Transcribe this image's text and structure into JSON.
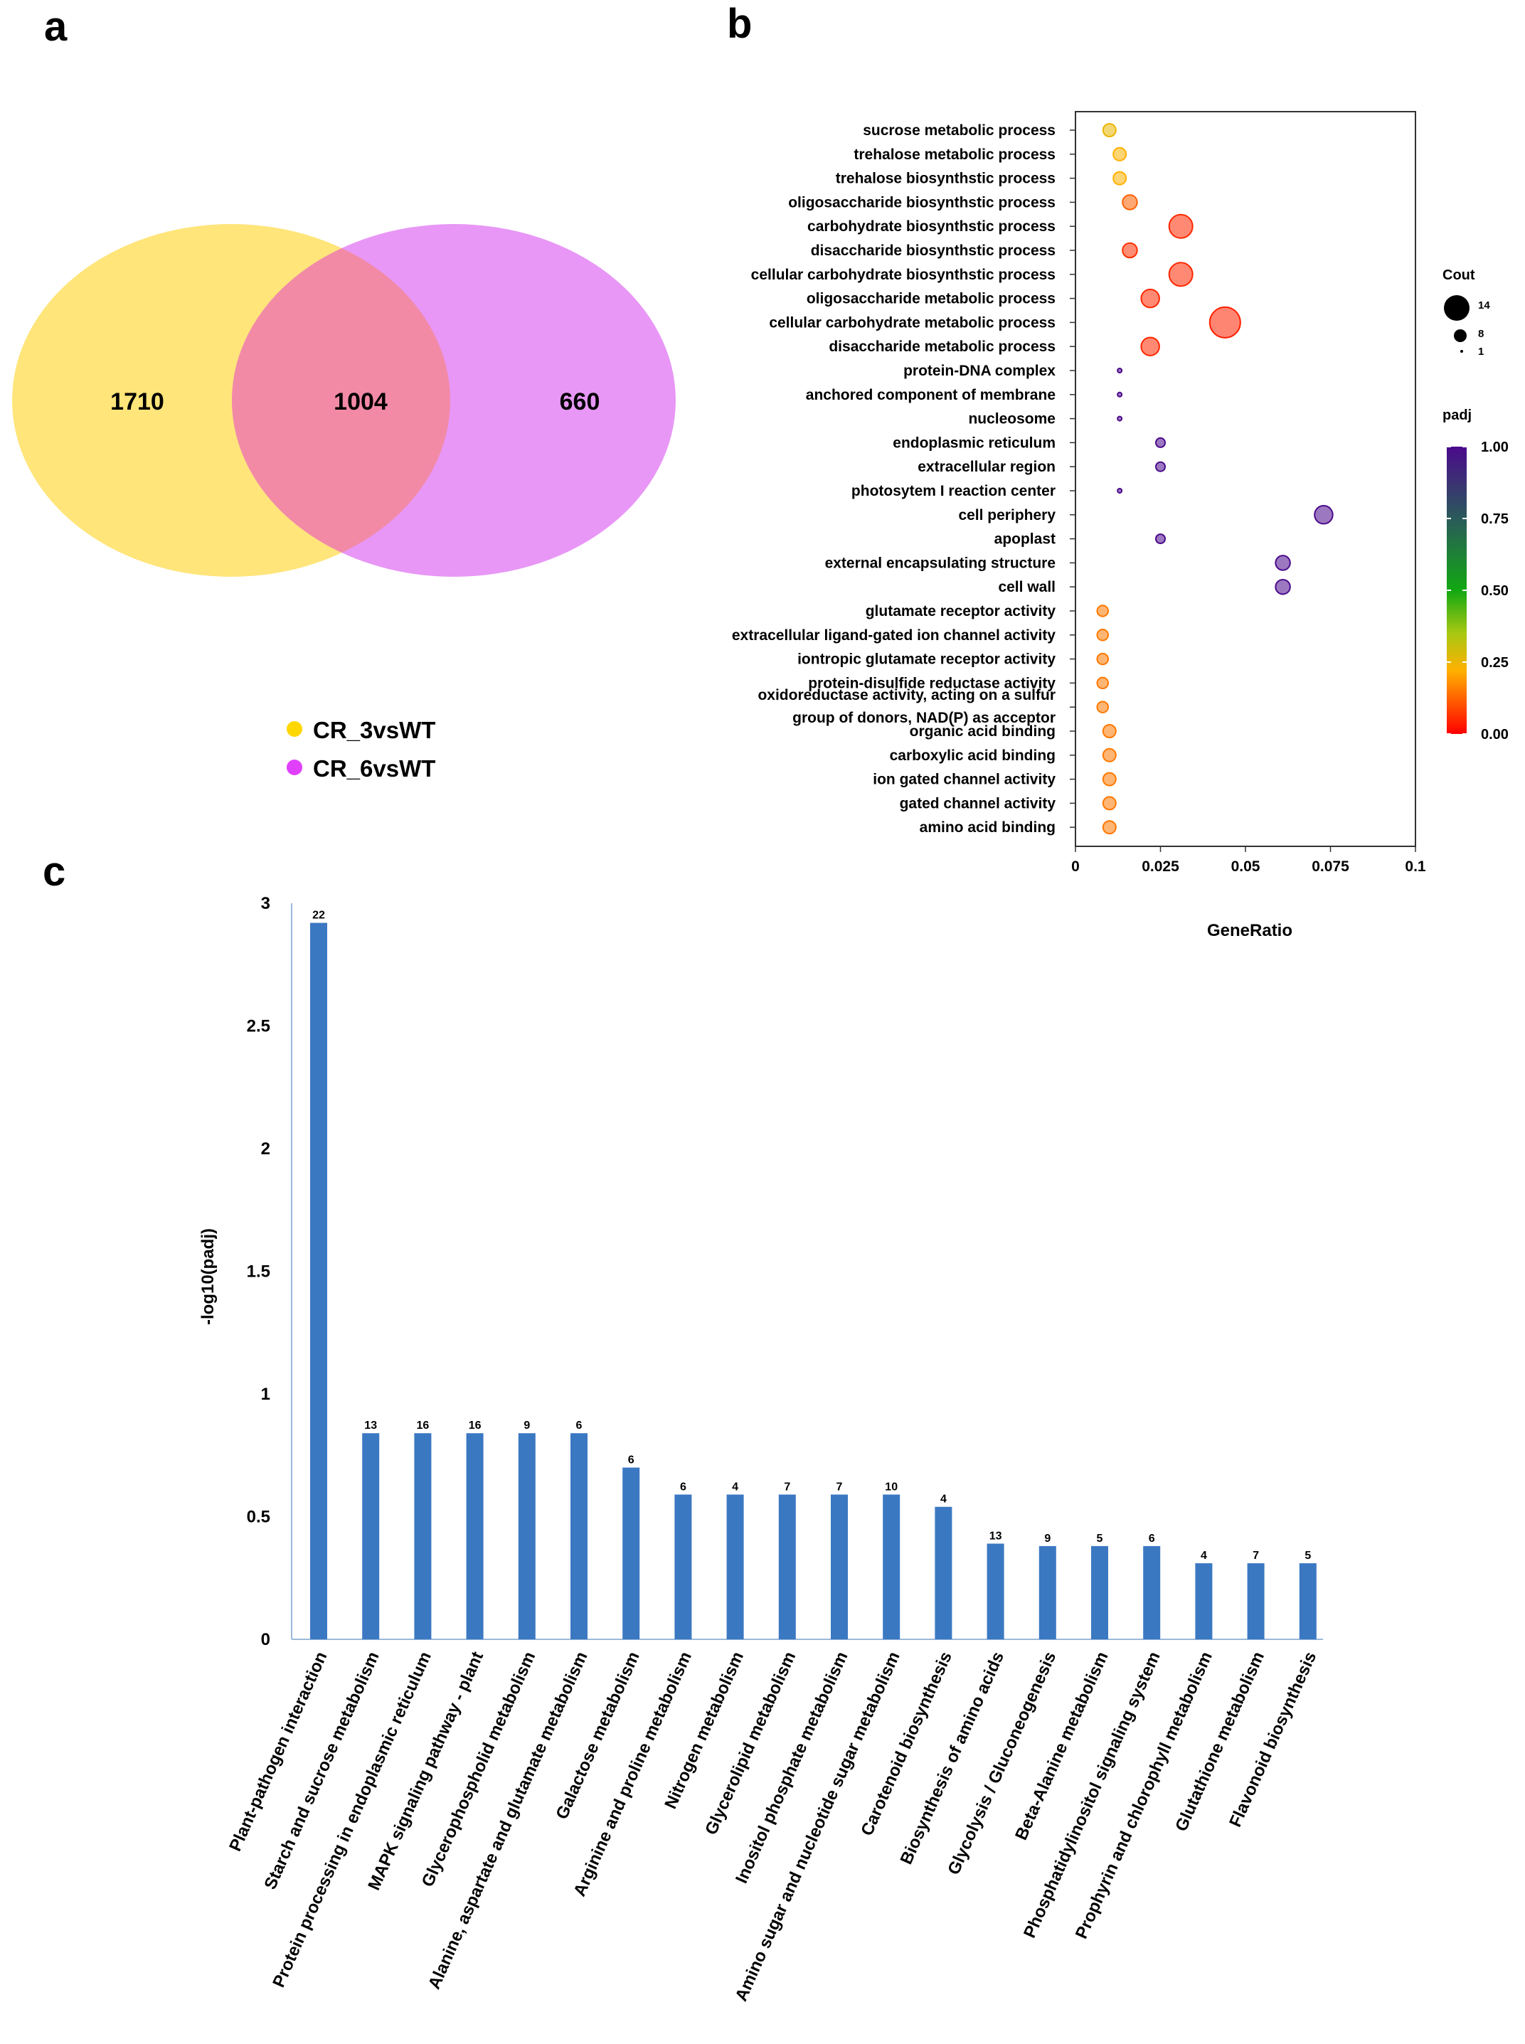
{
  "panels": {
    "a": "a",
    "b": "b",
    "c": "c"
  },
  "venn": {
    "left_only": "1710",
    "overlap": "1004",
    "right_only": "660",
    "legend": [
      {
        "label": "CR_3vsWT",
        "color": "#FFD700"
      },
      {
        "label": "CR_6vsWT",
        "color": "#E040FB"
      }
    ],
    "colors": {
      "left": "#FFE57A",
      "right": "#E897F6",
      "overlap": "#F28AA6"
    }
  },
  "chart_data": [
    {
      "type": "scatter",
      "title": "",
      "xlabel": "GeneRatio",
      "ylabel": "",
      "xlim": [
        0,
        0.1
      ],
      "xticks": [
        "0",
        "0.025",
        "0.05",
        "0.075",
        "0.1"
      ],
      "xtick_values": [
        0,
        0.025,
        0.05,
        0.075,
        0.1
      ],
      "size_legend": {
        "title": "Cout",
        "labels": [
          "14",
          "8",
          "1"
        ],
        "values": [
          14,
          8,
          1
        ]
      },
      "color_legend": {
        "title": "padj",
        "labels": [
          "1.00",
          "0.75",
          "0.50",
          "0.25",
          "0.00"
        ],
        "values": [
          1.0,
          0.75,
          0.5,
          0.25,
          0.0
        ]
      },
      "points": [
        {
          "term": "sucrose metabolic process",
          "x": 0.01,
          "count": 4,
          "padj": 0.25
        },
        {
          "term": "trehalose metabolic process",
          "x": 0.013,
          "count": 4,
          "padj": 0.22
        },
        {
          "term": "trehalose biosynthstic process",
          "x": 0.013,
          "count": 4,
          "padj": 0.22
        },
        {
          "term": "oligosaccharide biosynthstic process",
          "x": 0.016,
          "count": 5,
          "padj": 0.12
        },
        {
          "term": "carbohydrate biosynthstic process",
          "x": 0.031,
          "count": 10,
          "padj": 0.05
        },
        {
          "term": "disaccharide biosynthstic process",
          "x": 0.016,
          "count": 5,
          "padj": 0.06
        },
        {
          "term": "cellular carbohydrate biosynthstic process",
          "x": 0.031,
          "count": 10,
          "padj": 0.05
        },
        {
          "term": "oligosaccharide metabolic process",
          "x": 0.022,
          "count": 7,
          "padj": 0.05
        },
        {
          "term": "cellular carbohydrate metabolic process",
          "x": 0.044,
          "count": 14,
          "padj": 0.04
        },
        {
          "term": "disaccharide metabolic process",
          "x": 0.022,
          "count": 7,
          "padj": 0.05
        },
        {
          "term": "protein-DNA complex",
          "x": 0.013,
          "count": 1,
          "padj": 1.0
        },
        {
          "term": "anchored component of membrane",
          "x": 0.013,
          "count": 1,
          "padj": 1.0
        },
        {
          "term": "nucleosome",
          "x": 0.013,
          "count": 1,
          "padj": 1.0
        },
        {
          "term": "endoplasmic reticulum",
          "x": 0.025,
          "count": 2,
          "padj": 1.0
        },
        {
          "term": "extracellular region",
          "x": 0.025,
          "count": 2,
          "padj": 1.0
        },
        {
          "term": "photosytem I reaction center",
          "x": 0.013,
          "count": 1,
          "padj": 1.0
        },
        {
          "term": "cell periphery",
          "x": 0.073,
          "count": 7,
          "padj": 1.0
        },
        {
          "term": "apoplast",
          "x": 0.025,
          "count": 2,
          "padj": 1.0
        },
        {
          "term": "external encapsulating structure",
          "x": 0.061,
          "count": 5,
          "padj": 1.0
        },
        {
          "term": "cell wall",
          "x": 0.061,
          "count": 5,
          "padj": 1.0
        },
        {
          "term": "glutamate receptor activity",
          "x": 0.008,
          "count": 3,
          "padj": 0.15
        },
        {
          "term": "extracellular ligand-gated ion channel activity",
          "x": 0.008,
          "count": 3,
          "padj": 0.15
        },
        {
          "term": "iontropic glutamate receptor activity",
          "x": 0.008,
          "count": 3,
          "padj": 0.15
        },
        {
          "term": "protein-disulfide reductase activity",
          "x": 0.008,
          "count": 3,
          "padj": 0.15
        },
        {
          "term": "oxidoreductase activity, acting on a sulfur group of donors, NAD(P) as acceptor",
          "term_line1": "oxidoreductase activity, acting on a sulfur",
          "term_line2": "group of donors, NAD(P) as acceptor",
          "x": 0.008,
          "count": 3,
          "padj": 0.15
        },
        {
          "term": "organic acid binding",
          "x": 0.01,
          "count": 4,
          "padj": 0.15
        },
        {
          "term": "carboxylic acid binding",
          "x": 0.01,
          "count": 4,
          "padj": 0.15
        },
        {
          "term": "ion gated channel activity",
          "x": 0.01,
          "count": 4,
          "padj": 0.15
        },
        {
          "term": "gated channel activity",
          "x": 0.01,
          "count": 4,
          "padj": 0.15
        },
        {
          "term": "amino acid binding",
          "x": 0.01,
          "count": 4,
          "padj": 0.15
        }
      ]
    },
    {
      "type": "bar",
      "title": "",
      "xlabel": "",
      "ylabel": "-log10(padj)",
      "ylim": [
        0,
        3
      ],
      "yticks": [
        "0",
        "0.5",
        "1",
        "1.5",
        "2",
        "2.5",
        "3"
      ],
      "ytick_values": [
        0,
        0.5,
        1,
        1.5,
        2,
        2.5,
        3
      ],
      "bar_color": "#3B78C2",
      "categories": [
        "Plant-pathogen interaction",
        "Starch and sucrose metabolism",
        "Protein processing in endoplasmic reticulum",
        "MAPK signaling pathway - plant",
        "Glycerophospholid metabolism",
        "Alanine, aspartate and glutamate metabolism",
        "Galactose metabolism",
        "Arginine and proline metabolism",
        "Nitrogen metabolism",
        "Glycerolipid metabolism",
        "Inositol phosphate metabolism",
        "Amino sugar and nucleotide sugar metabolism",
        "Carotenoid biosynthesis",
        "Biosynthesis of amino acids",
        "Glycolysis / Gluconeogenesis",
        "Beta-Alanine metabolism",
        "Phosphatidylinositol signaling system",
        "Prophyrin and chlorophyll metabolism",
        "Glutathione metabolism",
        "Flavonoid biosynthesis"
      ],
      "values": [
        2.92,
        0.84,
        0.84,
        0.84,
        0.84,
        0.84,
        0.7,
        0.59,
        0.59,
        0.59,
        0.59,
        0.59,
        0.54,
        0.39,
        0.38,
        0.38,
        0.38,
        0.31,
        0.31,
        0.31
      ],
      "data_labels": [
        "22",
        "13",
        "16",
        "16",
        "9",
        "6",
        "6",
        "6",
        "4",
        "7",
        "7",
        "10",
        "4",
        "13",
        "9",
        "5",
        "6",
        "4",
        "7",
        "5"
      ]
    }
  ]
}
